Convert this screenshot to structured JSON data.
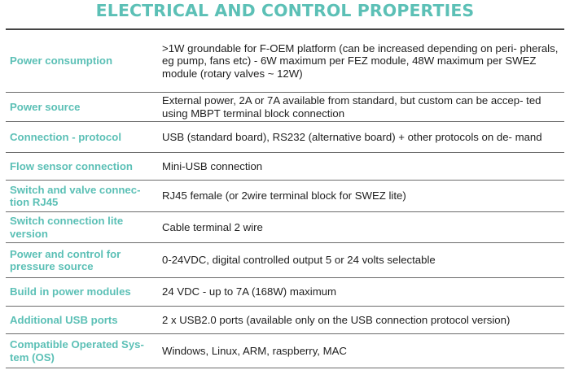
{
  "title": "ELECTRICAL AND CONTROL PROPERTIES",
  "rows": [
    {
      "label": "Power consumption",
      "value": ">1W groundable for F-OEM platform (can be increased depending on peri- pherals, eg pump, fans etc) - 6W maximum per FEZ module, 48W maximum per SWEZ module (rotary valves ~ 12W)"
    },
    {
      "label": "Power source",
      "value": "External power, 2A or 7A available from standard, but custom can be accep- ted using MBPT terminal block connection"
    },
    {
      "label": "Connection - protocol",
      "value": "USB (standard board), RS232 (alternative board) + other protocols on de- mand"
    },
    {
      "label": "Flow sensor connection",
      "value": "Mini-USB connection"
    },
    {
      "label": "Switch and valve connec- tion RJ45",
      "value": "RJ45 female (or 2wire terminal block for SWEZ lite)"
    },
    {
      "label": "Switch connection lite version",
      "value": "Cable terminal 2 wire"
    },
    {
      "label": "Power and control for pressure source",
      "value": "0-24VDC, digital controlled output 5 or 24 volts selectable"
    },
    {
      "label": "Build in power modules",
      "value": "24 VDC - up to 7A (168W) maximum"
    },
    {
      "label": "Additional USB ports",
      "value": "2 x USB2.0 ports (available only on the USB connection protocol version)"
    },
    {
      "label": "Compatible Operated Sys- tem (OS)",
      "value": "Windows, Linux, ARM, raspberry, MAC"
    }
  ]
}
